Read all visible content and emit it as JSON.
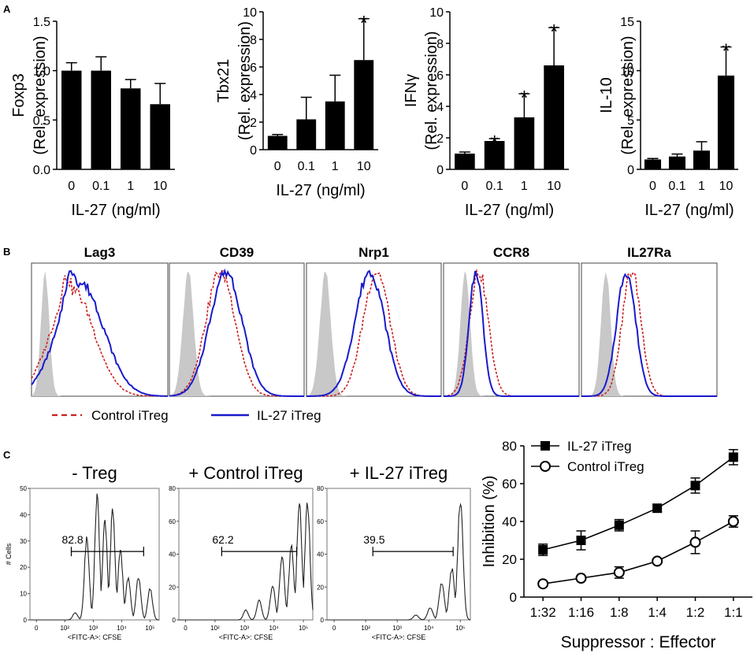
{
  "panel_labels": {
    "a": "A",
    "b": "B",
    "c": "C"
  },
  "significance_marker": "*",
  "chart_data": [
    {
      "id": "bar_foxp3",
      "type": "bar",
      "title": "",
      "ylabel_line1": "Foxp3",
      "ylabel_line2": "(Rel. expression)",
      "xlabel": "IL-27 (ng/ml)",
      "categories": [
        "0",
        "0.1",
        "1",
        "10"
      ],
      "values": [
        1.0,
        1.0,
        0.82,
        0.66
      ],
      "errors": [
        0.08,
        0.14,
        0.09,
        0.21
      ],
      "significant": [
        false,
        false,
        false,
        false
      ],
      "ylim": [
        0,
        1.5
      ],
      "yticks": [
        {
          "v": 0,
          "label": "0.0"
        },
        {
          "v": 0.5,
          "label": "0.5"
        },
        {
          "v": 1.0,
          "label": "1.0"
        },
        {
          "v": 1.5,
          "label": "1.5"
        }
      ]
    },
    {
      "id": "bar_tbx21",
      "type": "bar",
      "title": "",
      "ylabel_line1": "Tbx21",
      "ylabel_line2": "(Rel. expression)",
      "xlabel": "IL-27 (ng/ml)",
      "categories": [
        "0",
        "0.1",
        "1",
        "10"
      ],
      "values": [
        1.0,
        2.2,
        3.5,
        6.5
      ],
      "errors": [
        0.1,
        1.6,
        1.9,
        3.0
      ],
      "significant": [
        false,
        false,
        false,
        true
      ],
      "ylim": [
        0,
        10
      ],
      "yticks": [
        {
          "v": 0,
          "label": "0"
        },
        {
          "v": 2,
          "label": "2"
        },
        {
          "v": 4,
          "label": "4"
        },
        {
          "v": 6,
          "label": "6"
        },
        {
          "v": 8,
          "label": "8"
        },
        {
          "v": 10,
          "label": "10"
        }
      ]
    },
    {
      "id": "bar_ifng",
      "type": "bar",
      "title": "",
      "ylabel_line1": "IFNγ",
      "ylabel_line2": "(Rel. expression)",
      "xlabel": "IL-27 (ng/ml)",
      "categories": [
        "0",
        "0.1",
        "1",
        "10"
      ],
      "values": [
        1.0,
        1.8,
        3.3,
        6.6
      ],
      "errors": [
        0.1,
        0.15,
        1.5,
        2.4
      ],
      "significant": [
        false,
        true,
        true,
        true
      ],
      "ylim": [
        0,
        10
      ],
      "yticks": [
        {
          "v": 0,
          "label": "0"
        },
        {
          "v": 2,
          "label": "2"
        },
        {
          "v": 4,
          "label": "4"
        },
        {
          "v": 6,
          "label": "6"
        },
        {
          "v": 8,
          "label": "8"
        },
        {
          "v": 10,
          "label": "10"
        }
      ]
    },
    {
      "id": "bar_il10",
      "type": "bar",
      "title": "",
      "ylabel_line1": "IL-10",
      "ylabel_line2": "(Rel. expression)",
      "xlabel": "IL-27 (ng/ml)",
      "categories": [
        "0",
        "0.1",
        "1",
        "10"
      ],
      "values": [
        1.0,
        1.3,
        1.9,
        9.5
      ],
      "errors": [
        0.1,
        0.25,
        0.9,
        2.9
      ],
      "significant": [
        false,
        false,
        false,
        true
      ],
      "ylim": [
        0,
        15
      ],
      "yticks": [
        {
          "v": 0,
          "label": "0"
        },
        {
          "v": 5,
          "label": "5"
        },
        {
          "v": 10,
          "label": "10"
        },
        {
          "v": 15,
          "label": "15"
        }
      ]
    },
    {
      "id": "histograms",
      "type": "histogram-overlay",
      "markers": [
        "Lag3",
        "CD39",
        "Nrp1",
        "CCR8",
        "IL27Ra"
      ],
      "legend": [
        {
          "label": "Control iTreg",
          "color": "#cc1f1f",
          "style": "dashed"
        },
        {
          "label": "IL-27 iTreg",
          "color": "#1a1acc",
          "style": "solid"
        }
      ],
      "isotype_color": "#c8c8c8"
    },
    {
      "id": "cfse",
      "type": "histogram",
      "panels": [
        {
          "title": "- Treg",
          "gate_value": "82.8",
          "ymax": 50,
          "yticks": [
            0,
            10,
            20,
            30,
            40,
            50
          ]
        },
        {
          "title": "+ Control iTreg",
          "gate_value": "62.2",
          "ymax": 80,
          "yticks": [
            0,
            20,
            40,
            60,
            80
          ]
        },
        {
          "title": "+ IL-27 iTreg",
          "gate_value": "39.5",
          "ymax": 80,
          "yticks": [
            0,
            20,
            40,
            60,
            80
          ]
        }
      ],
      "ylabel": "# Cells",
      "xlabel": "<FITC-A>: CFSE",
      "xticks": [
        "0",
        "10²",
        "10³",
        "10⁴",
        "10⁵"
      ]
    },
    {
      "id": "inhibition",
      "type": "line",
      "title": "",
      "xlabel": "Suppressor : Effector",
      "ylabel": "Inhibition (%)",
      "categories": [
        "1:32",
        "1:16",
        "1:8",
        "1:4",
        "1:2",
        "1:1"
      ],
      "ylim": [
        0,
        80
      ],
      "yticks": [
        0,
        20,
        40,
        60,
        80
      ],
      "series": [
        {
          "name": "IL-27 iTreg",
          "marker": "filled-square",
          "values": [
            25,
            30,
            38,
            47,
            59,
            74
          ],
          "errors": [
            3,
            5,
            3,
            2,
            4,
            4
          ]
        },
        {
          "name": "Control iTreg",
          "marker": "open-circle",
          "values": [
            7,
            10,
            13,
            19,
            29,
            40
          ],
          "errors": [
            1,
            1,
            3,
            1,
            6,
            3
          ]
        }
      ],
      "legend_position": "top-left"
    }
  ]
}
